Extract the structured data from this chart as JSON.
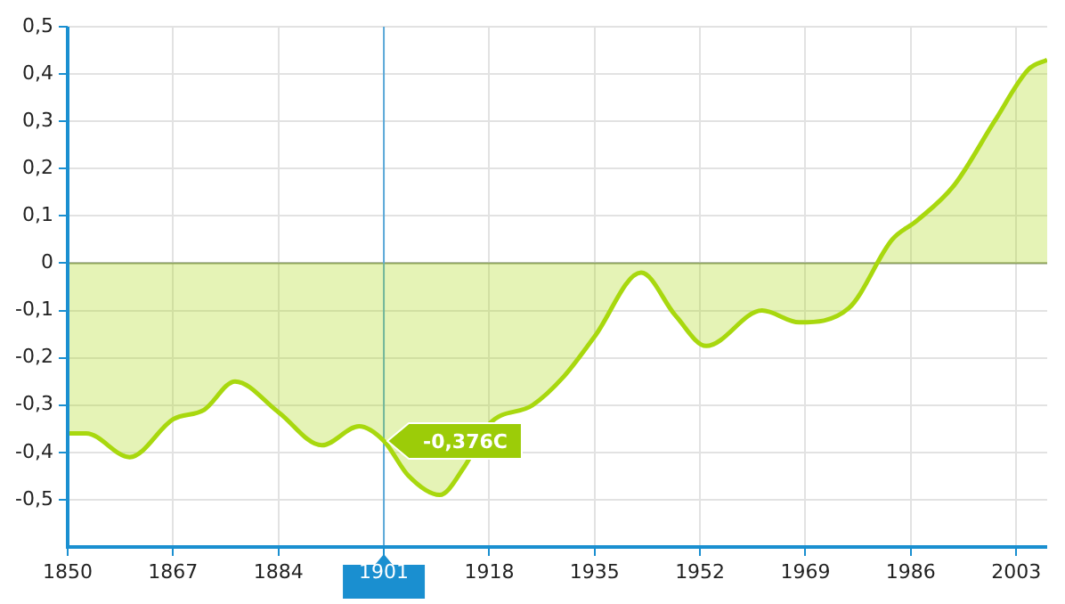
{
  "chart_data": {
    "type": "area",
    "x": [
      1850,
      1853,
      1860,
      1867,
      1872,
      1877,
      1884,
      1891,
      1897,
      1901,
      1905,
      1910,
      1914,
      1918,
      1925,
      1930,
      1935,
      1942.5,
      1948,
      1953,
      1962,
      1968,
      1976,
      1983,
      1987,
      1993,
      1999.5,
      2005,
      2008
    ],
    "series": [
      {
        "color": "#a8d80e",
        "values": [
          -0.36,
          -0.36,
          -0.41,
          -0.33,
          -0.31,
          -0.25,
          -0.315,
          -0.385,
          -0.345,
          -0.376,
          -0.45,
          -0.49,
          -0.43,
          -0.34,
          -0.3,
          -0.24,
          -0.155,
          -0.02,
          -0.11,
          -0.175,
          -0.1,
          -0.125,
          -0.095,
          0.05,
          0.09,
          0.165,
          0.3,
          0.41,
          0.43
        ]
      }
    ],
    "xlim": [
      1850,
      2008
    ],
    "xticks": [
      1850,
      1867,
      1884,
      1901,
      1918,
      1935,
      1952,
      1969,
      1986,
      2003
    ],
    "ylim": [
      -0.6,
      0.5
    ],
    "yticks": [
      {
        "value": 0.5,
        "label": "0,5"
      },
      {
        "value": 0.4,
        "label": "0,4"
      },
      {
        "value": 0.3,
        "label": "0,3"
      },
      {
        "value": 0.2,
        "label": "0,2"
      },
      {
        "value": 0.1,
        "label": "0,1"
      },
      {
        "value": 0,
        "label": "0"
      },
      {
        "value": -0.1,
        "label": "-0,1"
      },
      {
        "value": -0.2,
        "label": "-0,2"
      },
      {
        "value": -0.3,
        "label": "-0,3"
      },
      {
        "value": -0.4,
        "label": "-0,4"
      },
      {
        "value": -0.5,
        "label": "-0,5"
      }
    ],
    "grid": true,
    "legend": false,
    "ref_lines": [
      {
        "axis": "y",
        "value": 0,
        "color": "#8a9a70"
      },
      {
        "axis": "x",
        "value": 1901,
        "color": "#5aa8d8"
      }
    ],
    "annotations": [
      {
        "text": "-0,376C",
        "x": 1901,
        "y": -0.376
      }
    ]
  }
}
